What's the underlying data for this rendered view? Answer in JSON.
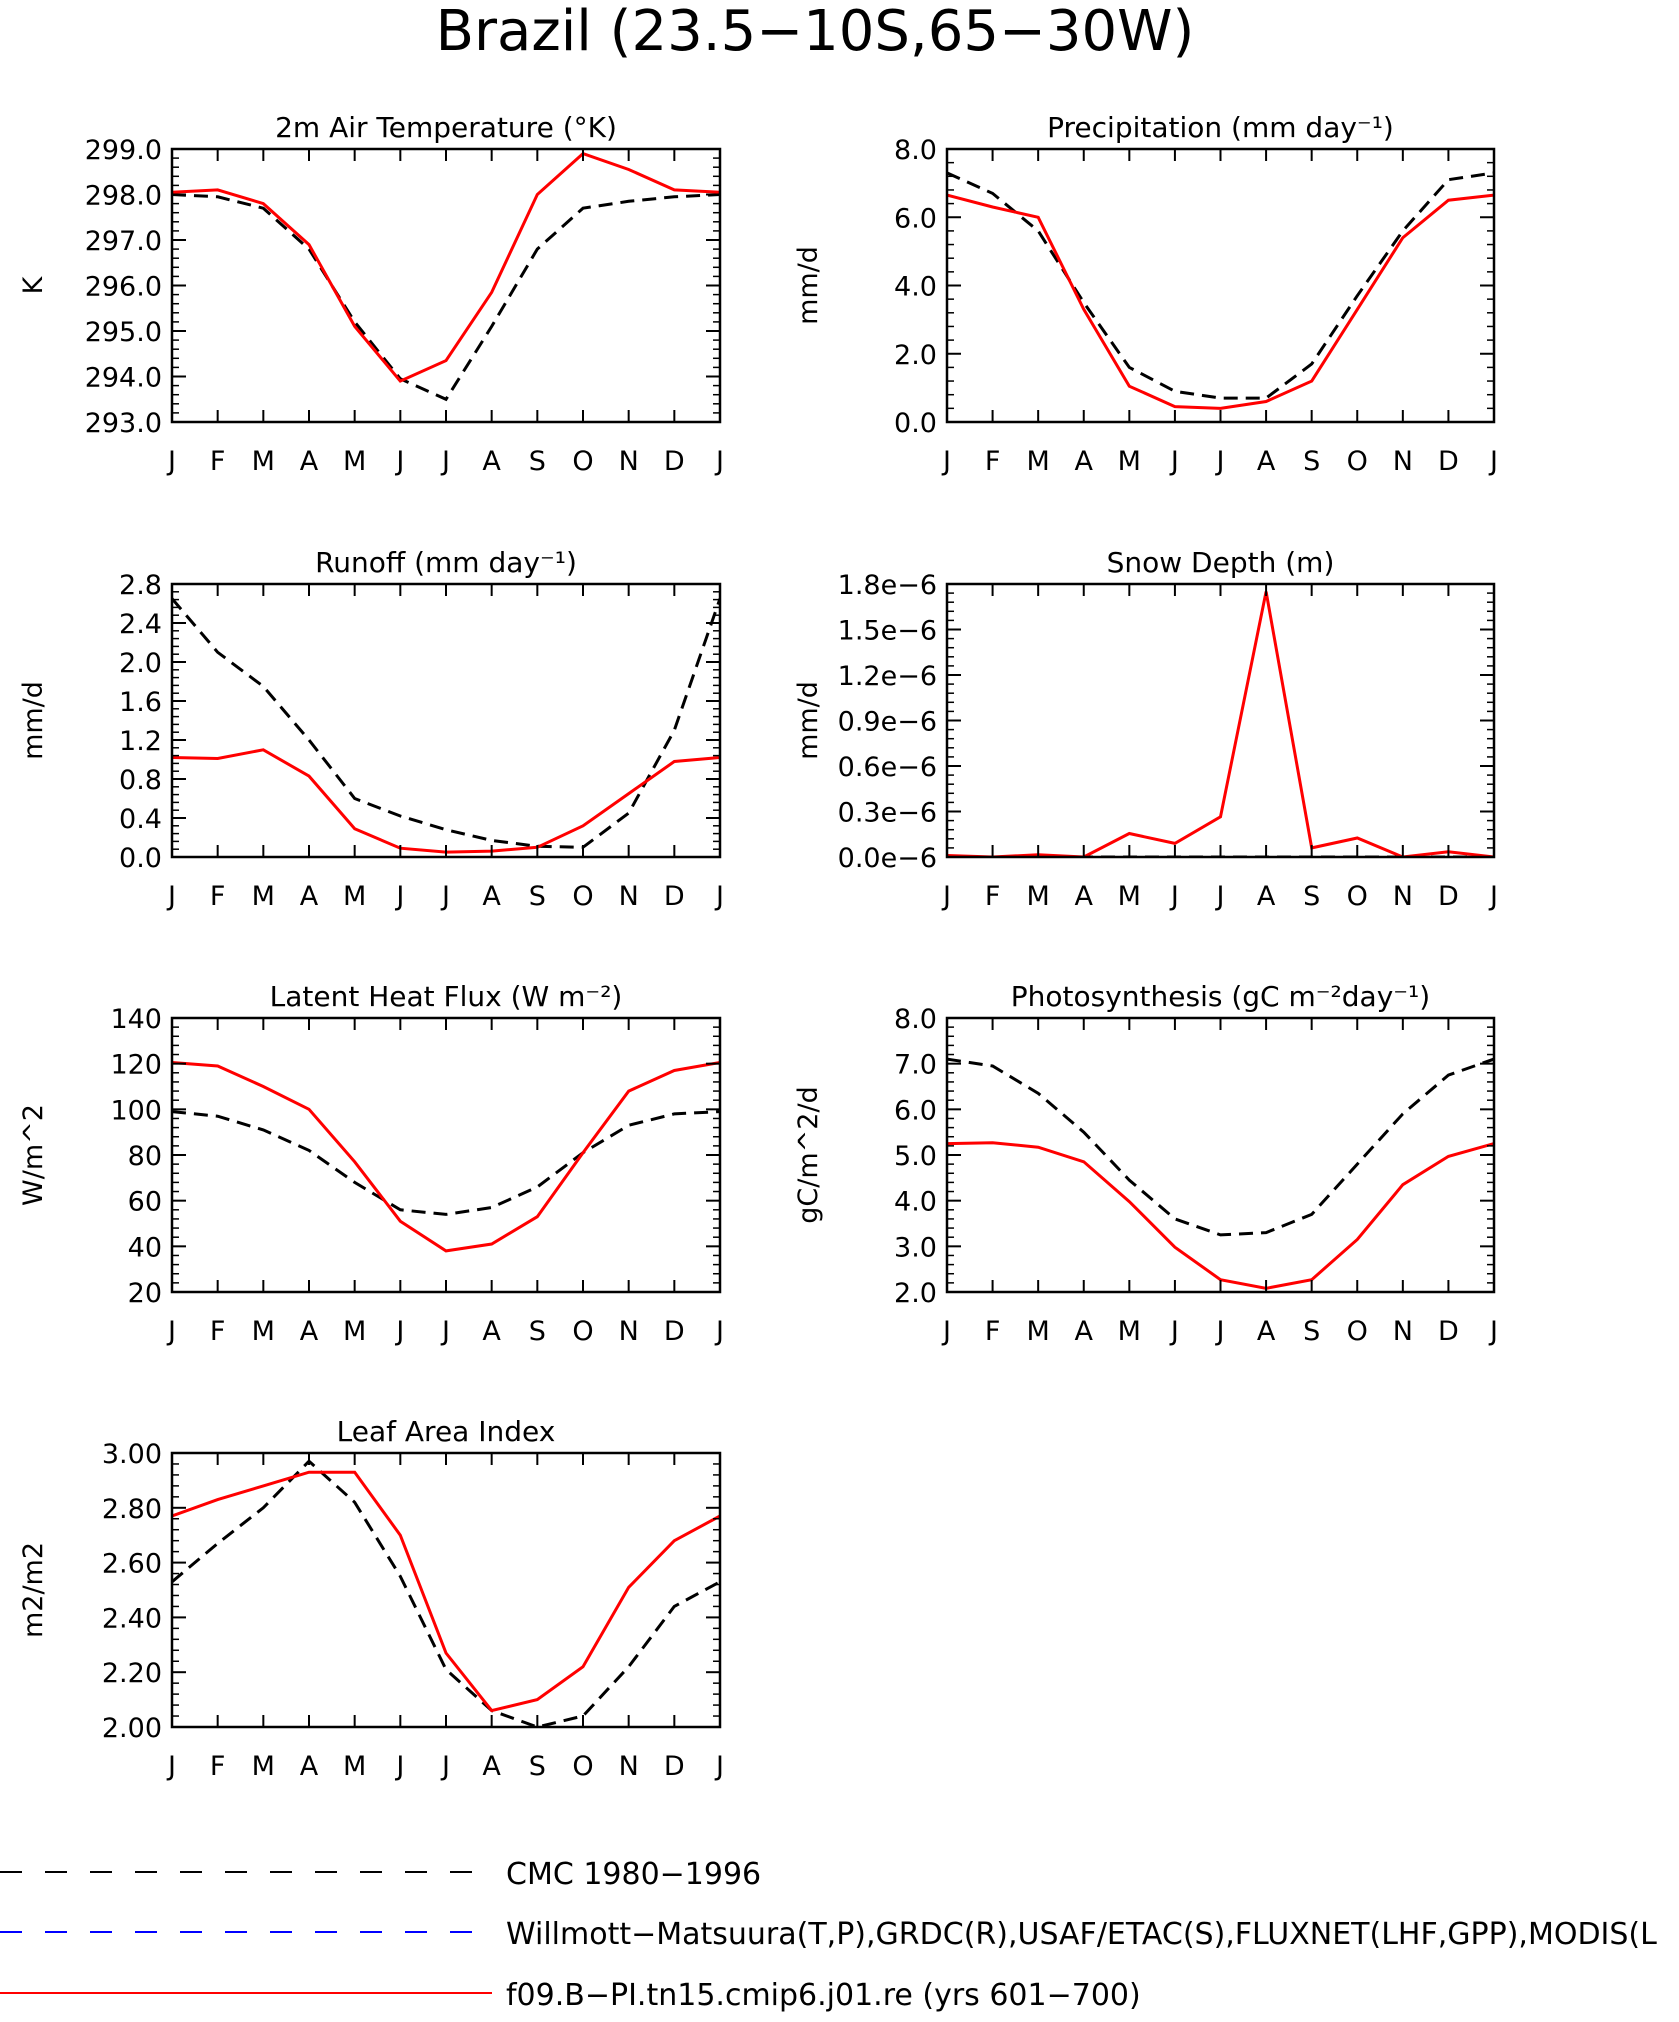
{
  "page": {
    "title": "Brazil (23.5−10S,65−30W)"
  },
  "months": [
    "J",
    "F",
    "M",
    "A",
    "M",
    "J",
    "J",
    "A",
    "S",
    "O",
    "N",
    "D",
    "J"
  ],
  "colors": {
    "obs": "#000000",
    "model": "#ff0000",
    "willmott": "#0000ff"
  },
  "legend": [
    {
      "label": "CMC 1980−1996",
      "style": "dashed",
      "color": "#000000"
    },
    {
      "label": "Willmott−Matsuura(T,P),GRDC(R),USAF/ETAC(S),FLUXNET(LHF,GPP),MODIS(L",
      "style": "dashed",
      "color": "#0000ff"
    },
    {
      "label": "f09.B−PI.tn15.cmip6.j01.re (yrs 601−700)",
      "style": "solid",
      "color": "#ff0000"
    }
  ],
  "chart_data": [
    {
      "type": "line",
      "title": "2m Air Temperature (°K)",
      "ylabel": "K",
      "ylim": [
        293,
        299
      ],
      "yticks": [
        293,
        294,
        295,
        296,
        297,
        298,
        299
      ],
      "ytick_labels": [
        "293.0",
        "294.0",
        "295.0",
        "296.0",
        "297.0",
        "298.0",
        "299.0"
      ],
      "x": [
        "J",
        "F",
        "M",
        "A",
        "M",
        "J",
        "J",
        "A",
        "S",
        "O",
        "N",
        "D",
        "J"
      ],
      "series": [
        {
          "values": [
            298.0,
            297.95,
            297.7,
            296.8,
            295.2,
            293.95,
            293.5,
            295.1,
            296.8,
            297.7,
            297.85,
            297.95,
            298.0
          ]
        },
        {
          "values": [
            298.05,
            298.1,
            297.8,
            296.9,
            295.1,
            293.9,
            294.35,
            295.85,
            298.0,
            298.9,
            298.55,
            298.1,
            298.05
          ]
        }
      ]
    },
    {
      "type": "line",
      "title": "Precipitation (mm day⁻¹)",
      "ylabel": "mm/d",
      "ylim": [
        0,
        8
      ],
      "yticks": [
        0,
        2,
        4,
        6,
        8
      ],
      "ytick_labels": [
        "0.0",
        "2.0",
        "4.0",
        "6.0",
        "8.0"
      ],
      "x": [
        "J",
        "F",
        "M",
        "A",
        "M",
        "J",
        "J",
        "A",
        "S",
        "O",
        "N",
        "D",
        "J"
      ],
      "series": [
        {
          "values": [
            7.3,
            6.7,
            5.6,
            3.5,
            1.6,
            0.9,
            0.7,
            0.7,
            1.7,
            3.7,
            5.6,
            7.1,
            7.3
          ]
        },
        {
          "values": [
            6.65,
            6.3,
            6.0,
            3.3,
            1.05,
            0.45,
            0.4,
            0.6,
            1.2,
            3.3,
            5.4,
            6.5,
            6.65
          ]
        }
      ]
    },
    {
      "type": "line",
      "title": "Runoff (mm day⁻¹)",
      "ylabel": "mm/d",
      "ylim": [
        0,
        2.8
      ],
      "yticks": [
        0,
        0.4,
        0.8,
        1.2,
        1.6,
        2.0,
        2.4,
        2.8
      ],
      "ytick_labels": [
        "0.0",
        "0.4",
        "0.8",
        "1.2",
        "1.6",
        "2.0",
        "2.4",
        "2.8"
      ],
      "x": [
        "J",
        "F",
        "M",
        "A",
        "M",
        "J",
        "J",
        "A",
        "S",
        "O",
        "N",
        "D",
        "J"
      ],
      "series": [
        {
          "values": [
            2.65,
            2.1,
            1.75,
            1.2,
            0.6,
            0.42,
            0.28,
            0.17,
            0.11,
            0.1,
            0.45,
            1.3,
            2.65
          ]
        },
        {
          "values": [
            1.02,
            1.01,
            1.1,
            0.83,
            0.29,
            0.09,
            0.05,
            0.06,
            0.1,
            0.32,
            0.65,
            0.98,
            1.02
          ]
        }
      ]
    },
    {
      "type": "line",
      "title": "Snow Depth (m)",
      "ylabel": "mm/d",
      "ylim": [
        0,
        1.8e-06
      ],
      "yticks": [
        0,
        3e-07,
        6e-07,
        9e-07,
        1.2e-06,
        1.5e-06,
        1.8e-06
      ],
      "ytick_labels": [
        "0.0e−6",
        "0.3e−6",
        "0.6e−6",
        "0.9e−6",
        "1.2e−6",
        "1.5e−6",
        "1.8e−6"
      ],
      "x": [
        "J",
        "F",
        "M",
        "A",
        "M",
        "J",
        "J",
        "A",
        "S",
        "O",
        "N",
        "D",
        "J"
      ],
      "series": [
        {
          "values": [
            0,
            0,
            0,
            0,
            0,
            0,
            0,
            0,
            0,
            0,
            0,
            0,
            0
          ]
        },
        {
          "values": [
            1e-08,
            0,
            1.5e-08,
            0,
            1.55e-07,
            9e-08,
            2.65e-07,
            1.75e-06,
            6e-08,
            1.25e-07,
            0,
            3.5e-08,
            0
          ]
        }
      ]
    },
    {
      "type": "line",
      "title": "Latent Heat Flux (W m⁻²)",
      "ylabel": "W/m^2",
      "ylim": [
        20,
        140
      ],
      "yticks": [
        20,
        40,
        60,
        80,
        100,
        120,
        140
      ],
      "ytick_labels": [
        "20",
        "40",
        "60",
        "80",
        "100",
        "120",
        "140"
      ],
      "x": [
        "J",
        "F",
        "M",
        "A",
        "M",
        "J",
        "J",
        "A",
        "S",
        "O",
        "N",
        "D",
        "J"
      ],
      "series": [
        {
          "values": [
            99,
            97,
            91,
            82,
            68,
            56,
            54,
            57,
            66,
            81,
            93,
            98,
            99
          ]
        },
        {
          "values": [
            120.5,
            119,
            110,
            100,
            77,
            51,
            38,
            41,
            53,
            81,
            108,
            117,
            120.5
          ]
        }
      ]
    },
    {
      "type": "line",
      "title": "Photosynthesis (gC m⁻²day⁻¹)",
      "ylabel": "gC/m^2/d",
      "ylim": [
        2,
        8
      ],
      "yticks": [
        2,
        3,
        4,
        5,
        6,
        7,
        8
      ],
      "ytick_labels": [
        "2.0",
        "3.0",
        "4.0",
        "5.0",
        "6.0",
        "7.0",
        "8.0"
      ],
      "x": [
        "J",
        "F",
        "M",
        "A",
        "M",
        "J",
        "J",
        "A",
        "S",
        "O",
        "N",
        "D",
        "J"
      ],
      "series": [
        {
          "values": [
            7.1,
            6.95,
            6.35,
            5.5,
            4.45,
            3.6,
            3.25,
            3.3,
            3.7,
            4.8,
            5.9,
            6.75,
            7.1
          ]
        },
        {
          "values": [
            5.25,
            5.27,
            5.17,
            4.85,
            3.98,
            2.98,
            2.27,
            2.08,
            2.27,
            3.15,
            4.35,
            4.97,
            5.25
          ]
        }
      ]
    },
    {
      "type": "line",
      "title": "Leaf Area Index",
      "ylabel": "m2/m2",
      "ylim": [
        2,
        3
      ],
      "yticks": [
        2.0,
        2.2,
        2.4,
        2.6,
        2.8,
        3.0
      ],
      "ytick_labels": [
        "2.00",
        "2.20",
        "2.40",
        "2.60",
        "2.80",
        "3.00"
      ],
      "x": [
        "J",
        "F",
        "M",
        "A",
        "M",
        "J",
        "J",
        "A",
        "S",
        "O",
        "N",
        "D",
        "J"
      ],
      "series": [
        {
          "values": [
            2.53,
            2.67,
            2.8,
            2.97,
            2.82,
            2.55,
            2.21,
            2.06,
            2.0,
            2.04,
            2.22,
            2.44,
            2.53
          ]
        },
        {
          "values": [
            2.77,
            2.83,
            2.88,
            2.93,
            2.93,
            2.7,
            2.27,
            2.06,
            2.1,
            2.22,
            2.51,
            2.68,
            2.77
          ]
        }
      ]
    }
  ]
}
